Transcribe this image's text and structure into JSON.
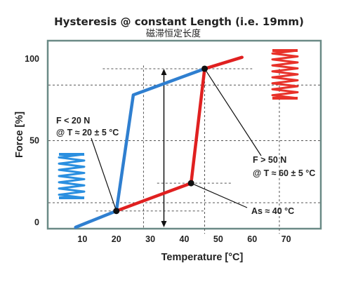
{
  "chart_data": {
    "type": "line",
    "title": "Hysteresis @ constant Length (i.e. 19mm)",
    "subtitle": "磁滞恒定长度",
    "xlabel": "Temperature [°C]",
    "ylabel": "Force [%]",
    "xlim": [
      0,
      80
    ],
    "ylim": [
      0,
      100
    ],
    "x_ticks": [
      "10",
      "20",
      "30",
      "40",
      "50",
      "60",
      "70"
    ],
    "y_ticks": [
      "0",
      "50",
      "100"
    ],
    "grid": "dashed reference lines only",
    "series": [
      {
        "color": "#2f7fd0",
        "points": [
          [
            8,
            -3
          ],
          [
            20,
            7
          ],
          [
            25,
            78
          ],
          [
            46,
            94
          ]
        ]
      },
      {
        "color": "#e02020",
        "points": [
          [
            20,
            7
          ],
          [
            42,
            24
          ],
          [
            46,
            94
          ],
          [
            57,
            101
          ]
        ]
      }
    ],
    "annotations": [
      {
        "lines": [
          "F < 20 N",
          "@ T ≈ 20 ± 5 °C"
        ],
        "point": [
          20,
          7
        ]
      },
      {
        "lines": [
          "F > 50 N",
          "@ T ≈ 60 ± 5 °C"
        ],
        "point": [
          46,
          94
        ]
      },
      {
        "lines": [
          "As ≈ 40 °C"
        ],
        "point": [
          42,
          24
        ]
      }
    ],
    "springs": [
      {
        "color": "#2a8fe0",
        "state": "compressed"
      },
      {
        "color": "#e8322a",
        "state": "extended"
      }
    ]
  }
}
